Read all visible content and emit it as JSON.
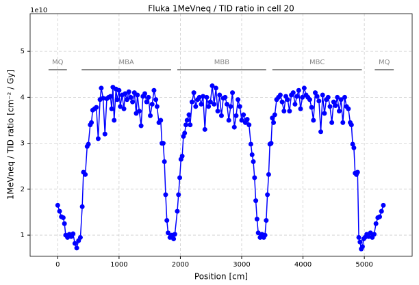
{
  "chart_data": {
    "type": "line",
    "title": "Fluka 1MeVneq / TID ratio in cell 20",
    "xlabel": "Position [cm]",
    "ylabel": "1MeVneq / TID ratio [cm⁻² / Gy]",
    "y_offset_label": "1e10",
    "color": "#0000ff",
    "grid": true,
    "xlim": [
      -450,
      5780
    ],
    "xticks": [
      0,
      1000,
      2000,
      3000,
      4000,
      5000
    ],
    "ylim": [
      0.54,
      5.82
    ],
    "yticks": [
      1,
      2,
      3,
      4,
      5
    ],
    "regions": [
      {
        "label": "MQ",
        "start": -150,
        "end": 150
      },
      {
        "label": "MBA",
        "start": 390,
        "end": 1850
      },
      {
        "label": "MBB",
        "start": 1950,
        "end": 3400
      },
      {
        "label": "MBC",
        "start": 3500,
        "end": 4960
      },
      {
        "label": "MQ",
        "start": 5170,
        "end": 5480
      }
    ],
    "x": [
      0,
      30,
      60,
      90,
      110,
      130,
      160,
      190,
      220,
      250,
      280,
      310,
      340,
      370,
      400,
      420,
      450,
      480,
      500,
      530,
      550,
      570,
      600,
      630,
      660,
      690,
      710,
      740,
      770,
      800,
      830,
      860,
      880,
      900,
      920,
      950,
      970,
      1000,
      1020,
      1050,
      1080,
      1100,
      1130,
      1160,
      1190,
      1220,
      1250,
      1280,
      1300,
      1330,
      1360,
      1390,
      1420,
      1450,
      1480,
      1510,
      1540,
      1570,
      1600,
      1620,
      1650,
      1680,
      1700,
      1720,
      1740,
      1760,
      1780,
      1800,
      1830,
      1860,
      1890,
      1910,
      1950,
      1970,
      1990,
      2010,
      2030,
      2050,
      2070,
      2090,
      2110,
      2140,
      2160,
      2190,
      2220,
      2250,
      2280,
      2310,
      2340,
      2370,
      2400,
      2430,
      2460,
      2490,
      2520,
      2550,
      2580,
      2610,
      2640,
      2670,
      2700,
      2730,
      2760,
      2790,
      2820,
      2850,
      2880,
      2910,
      2940,
      2970,
      3000,
      3030,
      3060,
      3090,
      3120,
      3150,
      3170,
      3190,
      3210,
      3230,
      3250,
      3270,
      3300,
      3330,
      3360,
      3380,
      3400,
      3420,
      3440,
      3460,
      3480,
      3500,
      3520,
      3540,
      3570,
      3600,
      3630,
      3660,
      3690,
      3720,
      3750,
      3780,
      3810,
      3840,
      3870,
      3900,
      3930,
      3960,
      3990,
      4020,
      4050,
      4080,
      4110,
      4140,
      4170,
      4200,
      4230,
      4260,
      4290,
      4320,
      4350,
      4380,
      4410,
      4440,
      4470,
      4500,
      4530,
      4560,
      4590,
      4620,
      4650,
      4680,
      4710,
      4740,
      4770,
      4790,
      4810,
      4830,
      4850,
      4870,
      4890,
      4910,
      4930,
      4950,
      4970,
      4990,
      5010,
      5040,
      5070,
      5100,
      5130,
      5160,
      5190,
      5220,
      5250,
      5280,
      5310
    ],
    "values": [
      1.65,
      1.52,
      1.4,
      1.38,
      1.25,
      1.0,
      0.95,
      1.02,
      0.97,
      1.03,
      0.82,
      0.72,
      0.88,
      0.95,
      1.62,
      2.37,
      2.32,
      2.93,
      2.98,
      3.4,
      3.45,
      3.72,
      3.75,
      3.78,
      3.1,
      3.95,
      4.2,
      3.98,
      3.2,
      3.97,
      4.0,
      4.02,
      3.75,
      4.22,
      3.5,
      4.18,
      3.95,
      4.15,
      3.8,
      4.05,
      3.75,
      4.08,
      3.95,
      4.12,
      4.0,
      3.9,
      4.1,
      3.65,
      4.05,
      3.7,
      3.38,
      4.02,
      4.08,
      3.9,
      4.0,
      3.6,
      3.85,
      4.15,
      3.95,
      3.8,
      3.45,
      3.5,
      3.0,
      3.0,
      2.6,
      1.88,
      1.32,
      1.05,
      0.95,
      1.0,
      0.92,
      1.02,
      1.52,
      1.88,
      2.25,
      2.65,
      2.72,
      3.15,
      3.22,
      3.4,
      3.5,
      3.62,
      3.4,
      3.9,
      4.1,
      3.8,
      3.95,
      4.0,
      3.85,
      4.02,
      3.3,
      4.0,
      3.8,
      3.9,
      4.25,
      3.85,
      4.2,
      3.7,
      4.05,
      3.6,
      3.98,
      4.0,
      3.85,
      3.5,
      3.8,
      4.1,
      3.35,
      3.6,
      3.95,
      3.8,
      3.5,
      3.62,
      3.45,
      3.52,
      3.4,
      2.98,
      2.75,
      2.6,
      2.25,
      1.75,
      1.35,
      1.05,
      0.95,
      1.02,
      0.95,
      1.0,
      1.32,
      1.88,
      2.32,
      2.98,
      3.0,
      3.55,
      3.45,
      3.62,
      3.95,
      4.0,
      4.05,
      3.9,
      3.7,
      4.02,
      3.95,
      3.7,
      4.05,
      4.1,
      3.85,
      4.02,
      4.15,
      3.75,
      4.0,
      4.2,
      4.05,
      4.0,
      3.95,
      3.78,
      3.5,
      4.1,
      4.02,
      3.92,
      3.25,
      4.05,
      3.65,
      3.95,
      4.0,
      3.8,
      3.45,
      3.9,
      3.82,
      4.0,
      3.7,
      3.95,
      3.45,
      4.0,
      3.8,
      3.75,
      3.45,
      3.4,
      2.98,
      2.9,
      2.35,
      2.32,
      2.37,
      0.95,
      0.85,
      0.7,
      0.75,
      0.92,
      0.95,
      1.02,
      0.97,
      1.05,
      0.95,
      1.02,
      1.25,
      1.38,
      1.4,
      1.52,
      1.65
    ]
  }
}
